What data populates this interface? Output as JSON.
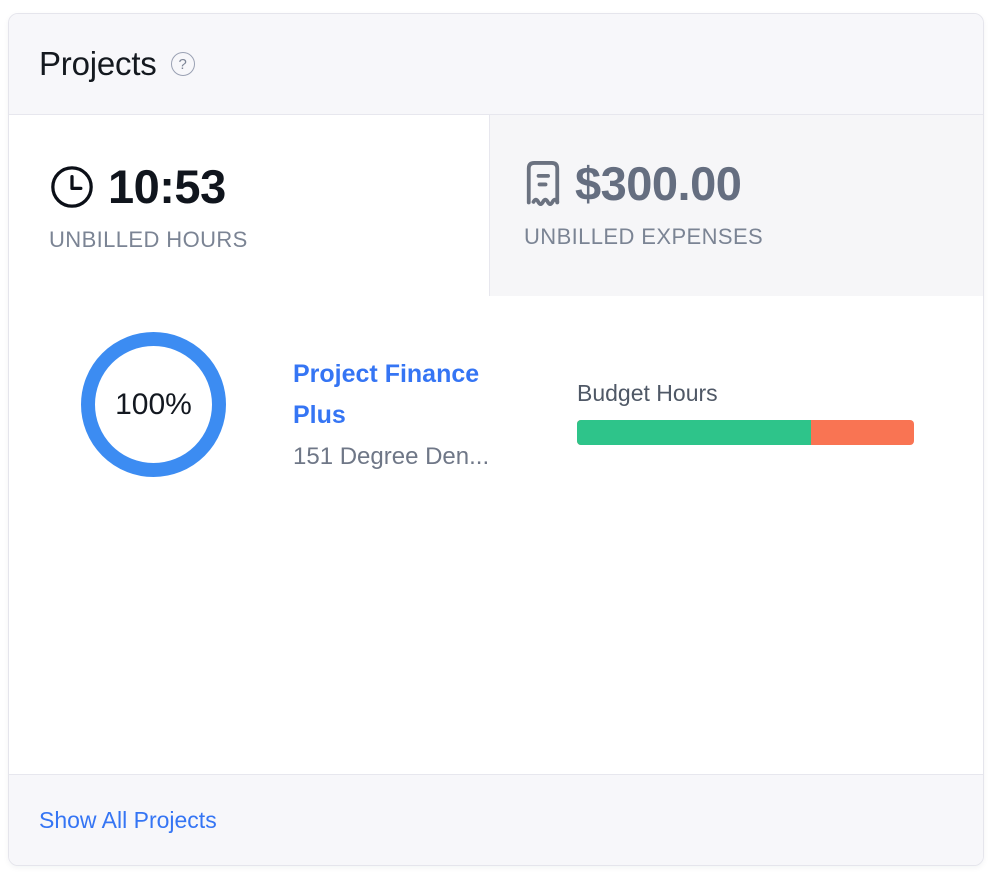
{
  "widget": {
    "title": "Projects",
    "help_icon": "question-circle"
  },
  "tabs": {
    "unbilled_hours": {
      "icon": "clock",
      "value": "10:53",
      "label": "UNBILLED HOURS",
      "active": true
    },
    "unbilled_expenses": {
      "icon": "receipt",
      "value": "$300.00",
      "label": "UNBILLED EXPENSES",
      "active": false
    }
  },
  "projects": [
    {
      "progress_label": "100%",
      "progress_pct": 100,
      "name": "Project Finance Plus",
      "client": "151 Degree Den...",
      "budget_label": "Budget Hours",
      "budget_used_pct": 69.5
    }
  ],
  "footer": {
    "show_all": "Show All Projects"
  },
  "colors": {
    "ring_blue": "#3C8CF2",
    "link_blue": "#3575F4",
    "budget_used_green": "#2EC48A",
    "budget_over_orange": "#F97453",
    "panel_gray": "#F7F7FA",
    "inactive_tab_gray": "#F6F6F8"
  }
}
